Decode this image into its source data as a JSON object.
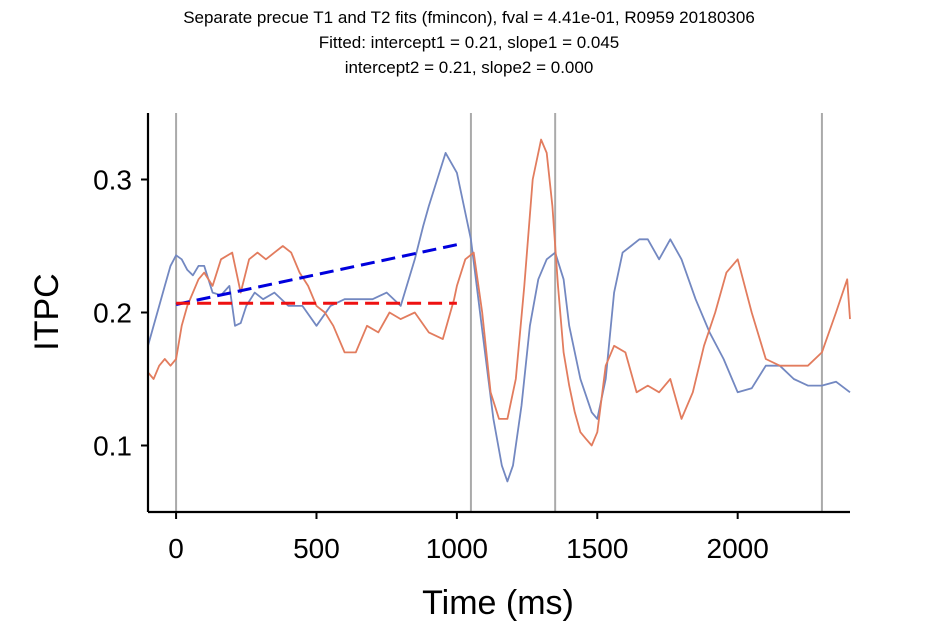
{
  "chart_data": {
    "type": "line",
    "title": "Separate precue T1 and T2 fits (fmincon), fval = 4.41e-01, R0959 20180306",
    "subtitle_lines": [
      "Fitted: intercept1 = 0.21, slope1 = 0.045",
      "intercept2 = 0.21, slope2 = 0.000"
    ],
    "xlabel": "Time (ms)",
    "ylabel": "ITPC",
    "xlim": [
      -100,
      2400
    ],
    "ylim": [
      0.05,
      0.35
    ],
    "xticks": [
      0,
      500,
      1000,
      1500,
      2000
    ],
    "xtick_labels": [
      "0",
      "500",
      "1000",
      "1500",
      "2000"
    ],
    "yticks": [
      0.1,
      0.2,
      0.3
    ],
    "ytick_labels": [
      "0.1",
      "0.2",
      "0.3"
    ],
    "grid": false,
    "vlines": [
      0,
      1050,
      1350,
      2300
    ],
    "colors": {
      "blue_series": "#7388c1",
      "orange_series": "#e27c5e",
      "fit1": "#0000dd",
      "fit2": "#ee1111",
      "vline": "#aaaaaa"
    },
    "series": [
      {
        "x": [
          -100,
          -80,
          -60,
          -40,
          -20,
          0,
          20,
          40,
          60,
          80,
          100,
          130,
          160,
          190,
          210,
          230,
          250,
          280,
          310,
          350,
          400,
          450,
          500,
          550,
          600,
          650,
          700,
          750,
          800,
          850,
          880,
          900,
          930,
          960,
          1000,
          1050,
          1100,
          1130,
          1160,
          1180,
          1200,
          1230,
          1260,
          1290,
          1320,
          1350,
          1380,
          1400,
          1440,
          1480,
          1500,
          1530,
          1560,
          1590,
          1620,
          1650,
          1680,
          1720,
          1760,
          1800,
          1850,
          1900,
          1950,
          2000,
          2050,
          2100,
          2150,
          2200,
          2250,
          2300,
          2350,
          2400
        ],
        "y": [
          0.175,
          0.19,
          0.205,
          0.22,
          0.235,
          0.243,
          0.24,
          0.232,
          0.228,
          0.235,
          0.235,
          0.215,
          0.213,
          0.22,
          0.19,
          0.192,
          0.205,
          0.215,
          0.21,
          0.215,
          0.205,
          0.205,
          0.19,
          0.205,
          0.21,
          0.21,
          0.21,
          0.215,
          0.205,
          0.24,
          0.265,
          0.28,
          0.3,
          0.32,
          0.305,
          0.255,
          0.17,
          0.12,
          0.085,
          0.073,
          0.085,
          0.13,
          0.19,
          0.225,
          0.24,
          0.245,
          0.225,
          0.19,
          0.15,
          0.125,
          0.12,
          0.15,
          0.215,
          0.245,
          0.25,
          0.255,
          0.255,
          0.24,
          0.255,
          0.24,
          0.21,
          0.185,
          0.165,
          0.14,
          0.143,
          0.16,
          0.16,
          0.15,
          0.145,
          0.145,
          0.148,
          0.14
        ]
      },
      {
        "x": [
          -100,
          -80,
          -60,
          -40,
          -20,
          0,
          20,
          40,
          60,
          80,
          100,
          130,
          160,
          200,
          230,
          260,
          290,
          320,
          350,
          380,
          410,
          440,
          470,
          500,
          530,
          560,
          600,
          640,
          680,
          720,
          760,
          800,
          850,
          900,
          950,
          990,
          1000,
          1030,
          1060,
          1090,
          1120,
          1150,
          1180,
          1210,
          1240,
          1270,
          1300,
          1320,
          1340,
          1360,
          1380,
          1400,
          1420,
          1440,
          1460,
          1480,
          1500,
          1530,
          1560,
          1600,
          1640,
          1680,
          1720,
          1760,
          1800,
          1840,
          1880,
          1920,
          1960,
          2000,
          2050,
          2100,
          2150,
          2200,
          2250,
          2300,
          2350,
          2390,
          2400
        ],
        "y": [
          0.155,
          0.15,
          0.16,
          0.165,
          0.16,
          0.165,
          0.19,
          0.205,
          0.215,
          0.225,
          0.23,
          0.22,
          0.24,
          0.245,
          0.215,
          0.24,
          0.245,
          0.24,
          0.245,
          0.25,
          0.245,
          0.23,
          0.22,
          0.205,
          0.2,
          0.19,
          0.17,
          0.17,
          0.19,
          0.185,
          0.2,
          0.195,
          0.2,
          0.185,
          0.18,
          0.21,
          0.22,
          0.24,
          0.245,
          0.2,
          0.14,
          0.12,
          0.12,
          0.15,
          0.22,
          0.3,
          0.33,
          0.32,
          0.28,
          0.22,
          0.17,
          0.145,
          0.125,
          0.11,
          0.105,
          0.1,
          0.11,
          0.16,
          0.175,
          0.17,
          0.14,
          0.145,
          0.14,
          0.15,
          0.12,
          0.14,
          0.175,
          0.2,
          0.23,
          0.24,
          0.2,
          0.165,
          0.16,
          0.16,
          0.16,
          0.17,
          0.2,
          0.225,
          0.195
        ]
      }
    ],
    "fit_lines": [
      {
        "x": [
          0,
          1000
        ],
        "y": [
          0.206,
          0.251
        ]
      },
      {
        "x": [
          0,
          1000
        ],
        "y": [
          0.207,
          0.207
        ]
      }
    ]
  }
}
